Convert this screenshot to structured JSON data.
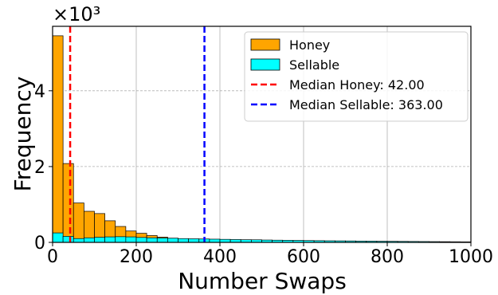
{
  "chart_data": {
    "type": "bar",
    "xlabel": "Number Swaps",
    "ylabel": "Frequency",
    "y_multiplier_label": "×10³",
    "xlim": [
      0,
      1000
    ],
    "ylim": [
      0,
      5700
    ],
    "xticks": [
      0,
      200,
      400,
      600,
      800,
      1000
    ],
    "xtick_labels": [
      "0",
      "200",
      "400",
      "600",
      "800",
      "1000"
    ],
    "yticks": [
      0,
      2000,
      4000
    ],
    "ytick_labels": [
      "0",
      "2",
      "4"
    ],
    "grid": true,
    "legend_position": "top-right",
    "bin_width": 25,
    "series": [
      {
        "name": "Honey",
        "color": "#ffa500",
        "values": [
          5450,
          2080,
          1040,
          820,
          760,
          570,
          420,
          300,
          240,
          180,
          140,
          110,
          90,
          75,
          62,
          52,
          45,
          38,
          32,
          28,
          24,
          20,
          18,
          16,
          14,
          12,
          11,
          10,
          9,
          8,
          7,
          7,
          6,
          6,
          5,
          5,
          4,
          4,
          3,
          3
        ]
      },
      {
        "name": "Sellable",
        "color": "#00ffff",
        "values": [
          250,
          160,
          100,
          120,
          135,
          145,
          150,
          145,
          130,
          120,
          115,
          110,
          100,
          95,
          90,
          85,
          80,
          75,
          70,
          68,
          62,
          58,
          55,
          52,
          48,
          45,
          42,
          40,
          38,
          35,
          33,
          30,
          28,
          26,
          24,
          22,
          20,
          18,
          16,
          14
        ]
      }
    ],
    "median_lines": [
      {
        "name": "Median Honey: 42.00",
        "value": 42.0,
        "color": "#ff0000"
      },
      {
        "name": "Median Sellable: 363.00",
        "value": 363.0,
        "color": "#0000ff"
      }
    ]
  }
}
